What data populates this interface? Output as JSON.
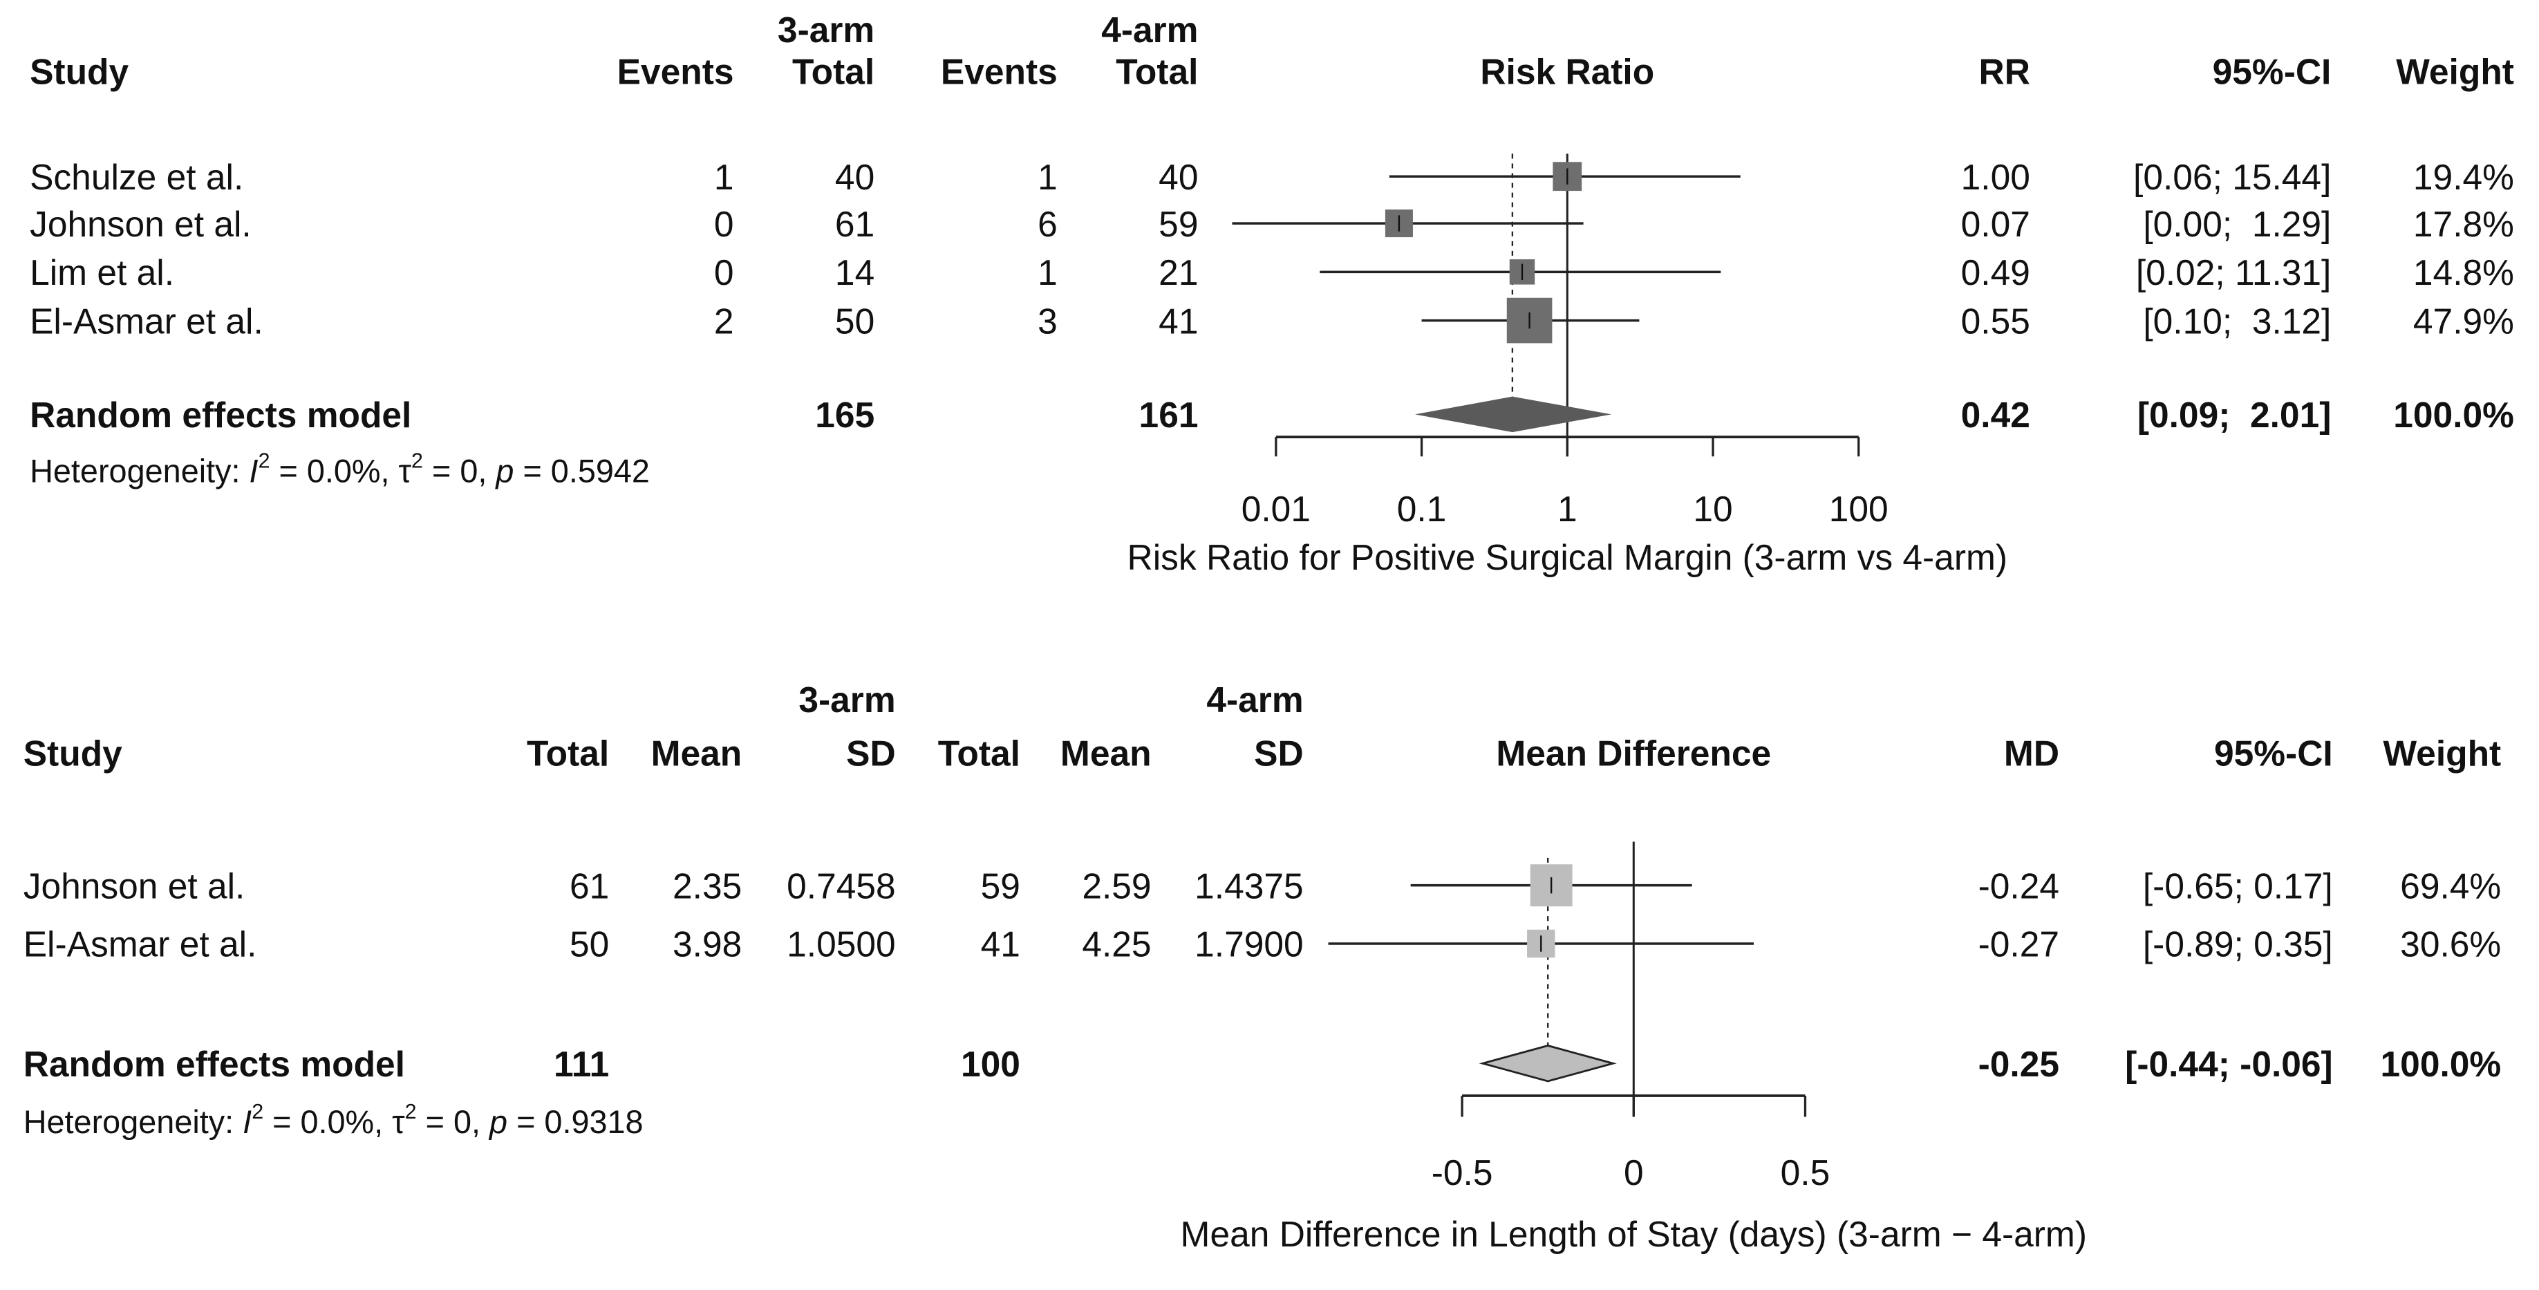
{
  "chart_data": [
    {
      "type": "forest",
      "scale": "log",
      "title": "Risk Ratio",
      "xlabel": "Risk Ratio for Positive Surgical Margin (3-arm vs 4-arm)",
      "xticks": [
        0.01,
        0.1,
        1,
        10,
        100
      ],
      "xtick_labels": [
        "0.01",
        "0.1",
        "1",
        "10",
        "100"
      ],
      "xlim": [
        0.01,
        100
      ],
      "group_headers": [
        "3-arm",
        "4-arm"
      ],
      "columns": [
        "Study",
        "Events",
        "Total",
        "Events",
        "Total",
        "Risk Ratio",
        "RR",
        "95%-CI",
        "Weight"
      ],
      "studies": [
        {
          "name": "Schulze et al.",
          "c1": "1",
          "c2": "40",
          "c3": "1",
          "c4": "40",
          "est": 1.0,
          "lo": 0.06,
          "hi": 15.44,
          "est_label": "1.00",
          "ci_label": "[0.06; 15.44]",
          "weight": 19.4,
          "weight_label": "19.4%"
        },
        {
          "name": "Johnson et al.",
          "c1": "0",
          "c2": "61",
          "c3": "6",
          "c4": "59",
          "est": 0.07,
          "lo": 0.004,
          "hi": 1.29,
          "est_label": "0.07",
          "ci_label": "[0.00;  1.29]",
          "weight": 17.8,
          "weight_label": "17.8%"
        },
        {
          "name": "Lim et al.",
          "c1": "0",
          "c2": "14",
          "c3": "1",
          "c4": "21",
          "est": 0.49,
          "lo": 0.02,
          "hi": 11.31,
          "est_label": "0.49",
          "ci_label": "[0.02; 11.31]",
          "weight": 14.8,
          "weight_label": "14.8%"
        },
        {
          "name": "El-Asmar et al.",
          "c1": "2",
          "c2": "50",
          "c3": "3",
          "c4": "41",
          "est": 0.55,
          "lo": 0.1,
          "hi": 3.12,
          "est_label": "0.55",
          "ci_label": "[0.10;  3.12]",
          "weight": 47.9,
          "weight_label": "47.9%"
        }
      ],
      "summary": {
        "name": "Random effects model",
        "t1": "165",
        "t2": "161",
        "est": 0.42,
        "lo": 0.09,
        "hi": 2.01,
        "est_label": "0.42",
        "ci_label": "[0.09;  2.01]",
        "weight_label": "100.0%"
      },
      "heterogeneity": {
        "label": "Heterogeneity: ",
        "i2_sym": "I",
        "i2": " = 0.0%, ",
        "tau_sym": "τ",
        "tau": " = 0, ",
        "p_sym": "p",
        "p": " = 0.5942"
      },
      "colors": {
        "box": "#6e6e6e",
        "diamond": "#5a5a5a",
        "line": "#222222"
      }
    },
    {
      "type": "forest",
      "scale": "linear",
      "title": "Mean Difference",
      "xlabel": "Mean Difference in Length of Stay (days) (3-arm − 4-arm)",
      "xticks": [
        -0.5,
        0,
        0.5
      ],
      "xtick_labels": [
        "-0.5",
        "0",
        "0.5"
      ],
      "xlim": [
        -0.5,
        0.5
      ],
      "group_headers": [
        "3-arm",
        "4-arm"
      ],
      "columns": [
        "Study",
        "Total",
        "Mean",
        "SD",
        "Total",
        "Mean",
        "SD",
        "Mean Difference",
        "MD",
        "95%-CI",
        "Weight"
      ],
      "studies": [
        {
          "name": "Johnson et al.",
          "c1": "61",
          "c2": "2.35",
          "c3": "0.7458",
          "c4": "59",
          "c5": "2.59",
          "c6": "1.4375",
          "est": -0.24,
          "lo": -0.65,
          "hi": 0.17,
          "est_label": "-0.24",
          "ci_label": "[-0.65; 0.17]",
          "weight": 69.4,
          "weight_label": "69.4%"
        },
        {
          "name": "El-Asmar et al.",
          "c1": "50",
          "c2": "3.98",
          "c3": "1.0500",
          "c4": "41",
          "c5": "4.25",
          "c6": "1.7900",
          "est": -0.27,
          "lo": -0.89,
          "hi": 0.35,
          "est_label": "-0.27",
          "ci_label": "[-0.89; 0.35]",
          "weight": 30.6,
          "weight_label": "30.6%"
        }
      ],
      "summary": {
        "name": "Random effects model",
        "t1": "111",
        "t2": "100",
        "est": -0.25,
        "lo": -0.44,
        "hi": -0.06,
        "est_label": "-0.25",
        "ci_label": "[-0.44; -0.06]",
        "weight_label": "100.0%"
      },
      "heterogeneity": {
        "label": "Heterogeneity: ",
        "i2_sym": "I",
        "i2": " = 0.0%, ",
        "tau_sym": "τ",
        "tau": " = 0, ",
        "p_sym": "p",
        "p": " = 0.9318"
      },
      "colors": {
        "box": "#bdbdbd",
        "diamond": "#bdbdbd",
        "line": "#222222"
      }
    }
  ]
}
